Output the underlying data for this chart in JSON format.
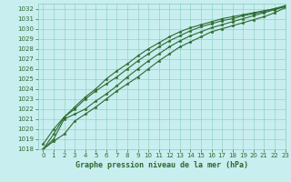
{
  "title": "Graphe pression niveau de la mer (hPa)",
  "bg_color": "#c8eef0",
  "grid_color": "#88ccbb",
  "line_color": "#2d6a2d",
  "xlim": [
    -0.5,
    23
  ],
  "ylim": [
    1018,
    1032.5
  ],
  "xticks": [
    0,
    1,
    2,
    3,
    4,
    5,
    6,
    7,
    8,
    9,
    10,
    11,
    12,
    13,
    14,
    15,
    16,
    17,
    18,
    19,
    20,
    21,
    22,
    23
  ],
  "yticks": [
    1018,
    1019,
    1020,
    1021,
    1022,
    1023,
    1024,
    1025,
    1026,
    1027,
    1028,
    1029,
    1030,
    1031,
    1032
  ],
  "series": [
    [
      1018.0,
      1018.8,
      1019.5,
      1020.8,
      1021.5,
      1022.2,
      1023.0,
      1023.8,
      1024.5,
      1025.2,
      1026.0,
      1026.8,
      1027.5,
      1028.2,
      1028.7,
      1029.2,
      1029.7,
      1030.0,
      1030.3,
      1030.6,
      1030.9,
      1031.2,
      1031.6,
      1032.1
    ],
    [
      1018.0,
      1019.0,
      1021.0,
      1021.5,
      1022.0,
      1022.8,
      1023.5,
      1024.3,
      1025.2,
      1026.0,
      1026.8,
      1027.5,
      1028.2,
      1028.8,
      1029.3,
      1029.7,
      1030.1,
      1030.4,
      1030.7,
      1031.0,
      1031.3,
      1031.6,
      1031.9,
      1032.2
    ],
    [
      1018.0,
      1019.5,
      1021.2,
      1022.0,
      1023.0,
      1023.8,
      1024.5,
      1025.2,
      1026.0,
      1026.8,
      1027.5,
      1028.2,
      1028.8,
      1029.3,
      1029.8,
      1030.2,
      1030.5,
      1030.8,
      1031.0,
      1031.3,
      1031.5,
      1031.7,
      1032.0,
      1032.3
    ],
    [
      1018.5,
      1020.0,
      1021.2,
      1022.2,
      1023.2,
      1024.0,
      1025.0,
      1025.8,
      1026.5,
      1027.3,
      1028.0,
      1028.6,
      1029.2,
      1029.7,
      1030.1,
      1030.4,
      1030.7,
      1031.0,
      1031.2,
      1031.4,
      1031.6,
      1031.8,
      1032.0,
      1032.2
    ]
  ],
  "tick_fontsize": 5,
  "xlabel_fontsize": 6,
  "marker_size": 2.5,
  "linewidth": 0.8
}
